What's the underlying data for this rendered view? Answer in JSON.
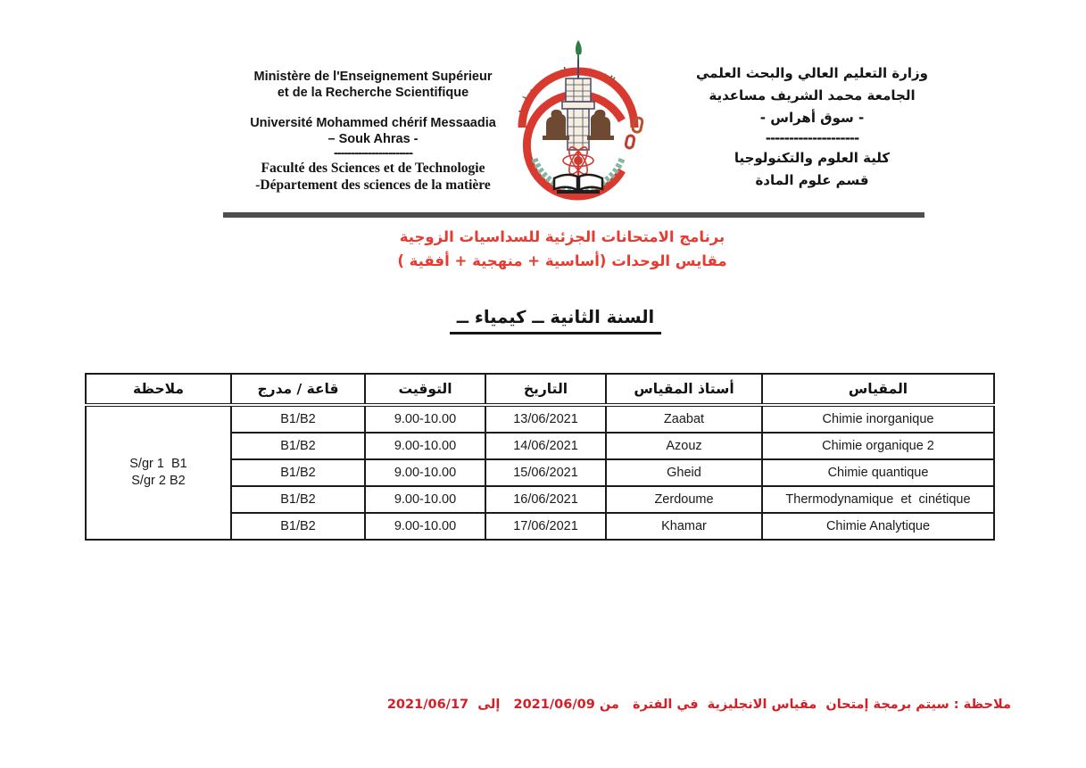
{
  "page": {
    "background": "#ffffff"
  },
  "header": {
    "left_block": {
      "line1": "Ministère de l'Enseignement Supérieur",
      "line2": "et de la Recherche Scientifique",
      "line3": "Université Mohammed chérif Messaadia",
      "line4": "– Souk Ahras -",
      "dashes": "-----------------------",
      "line5": "Faculté des Sciences et de Technologie",
      "line6": "-Département des sciences de la matière"
    },
    "logo": {
      "name": "university-seal",
      "primary_red": "#d93a30",
      "green": "#2f7d46",
      "lion_brown": "#6f4a32",
      "arc_teal": "#85b7a0"
    },
    "right_block": {
      "line1": "وزارة التعليم العالي والبحث العلمي",
      "line2": "الجامعة محمد الشريف مساعدية",
      "line3": "- سوق أهراس -",
      "dashes": "--------------------",
      "line4": "كلية العلوم والتكنولوجيا",
      "line5": "قسم علوم المادة"
    }
  },
  "title": {
    "line1": "برنامج الامتحانات الجزئية للسداسيات الزوجية",
    "line2": "مقايس الوحدات (أساسية + منهجية  + أفقية )",
    "color": "#e73b31"
  },
  "section_heading": {
    "text": "السنة الثانية ــ كيمياء ــ"
  },
  "table": {
    "headers": [
      "المقياس",
      "أستاذ المقياس",
      "التاريخ",
      "التوقيت",
      "قاعة / مدرج",
      "ملاحظة"
    ],
    "note_line1": "S/gr 1  B1",
    "note_line2": "S/gr 2 B2",
    "rows": [
      {
        "module": "Chimie inorganique",
        "teacher": "Zaabat",
        "date": "13/06/2021",
        "time": "9.00-10.00",
        "room": "B1/B2"
      },
      {
        "module": "Chimie organique 2",
        "teacher": "Azouz",
        "date": "14/06/2021",
        "time": "9.00-10.00",
        "room": "B1/B2"
      },
      {
        "module": "Chimie quantique",
        "teacher": "Gheid",
        "date": "15/06/2021",
        "time": "9.00-10.00",
        "room": "B1/B2"
      },
      {
        "module": "Thermodynamique  et  cinétique",
        "teacher": "Zerdoume",
        "date": "16/06/2021",
        "time": "9.00-10.00",
        "room": "B1/B2"
      },
      {
        "module": "Chimie Analytique",
        "teacher": "Khamar",
        "date": "17/06/2021",
        "time": "9.00-10.00",
        "room": "B1/B2"
      }
    ]
  },
  "footer_note": {
    "text": "ملاحظة : سيتم برمجة إمتحان  مقياس الانجليزية  في الفترة   من 2021/06/09   إلى  2021/06/17",
    "color": "#d22027"
  }
}
